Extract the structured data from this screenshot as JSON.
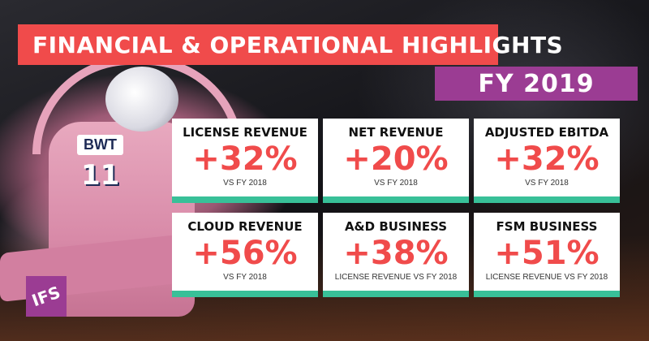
{
  "title": "FINANCIAL & OPERATIONAL HIGHLIGHTS",
  "period": "FY 2019",
  "cards": [
    {
      "label": "LICENSE REVENUE",
      "value": "+32%",
      "sub": "VS FY 2018"
    },
    {
      "label": "NET REVENUE",
      "value": "+20%",
      "sub": "VS FY 2018"
    },
    {
      "label": "ADJUSTED EBITDA",
      "value": "+32%",
      "sub": "VS FY 2018"
    },
    {
      "label": "CLOUD REVENUE",
      "value": "+56%",
      "sub": "VS FY 2018"
    },
    {
      "label": "A&D BUSINESS",
      "value": "+38%",
      "sub": "LICENSE REVENUE VS FY 2018"
    },
    {
      "label": "FSM BUSINESS",
      "value": "+51%",
      "sub": "LICENSE REVENUE VS FY 2018"
    }
  ],
  "logo": "IFS",
  "car": {
    "sponsor": "BWT",
    "number": "11"
  },
  "colors": {
    "title_bg": "#f04b4b",
    "period_bg": "#9b3c93",
    "value_text": "#f04b4b",
    "card_accent": "#38c098",
    "logo_bg": "#9b3c93"
  }
}
